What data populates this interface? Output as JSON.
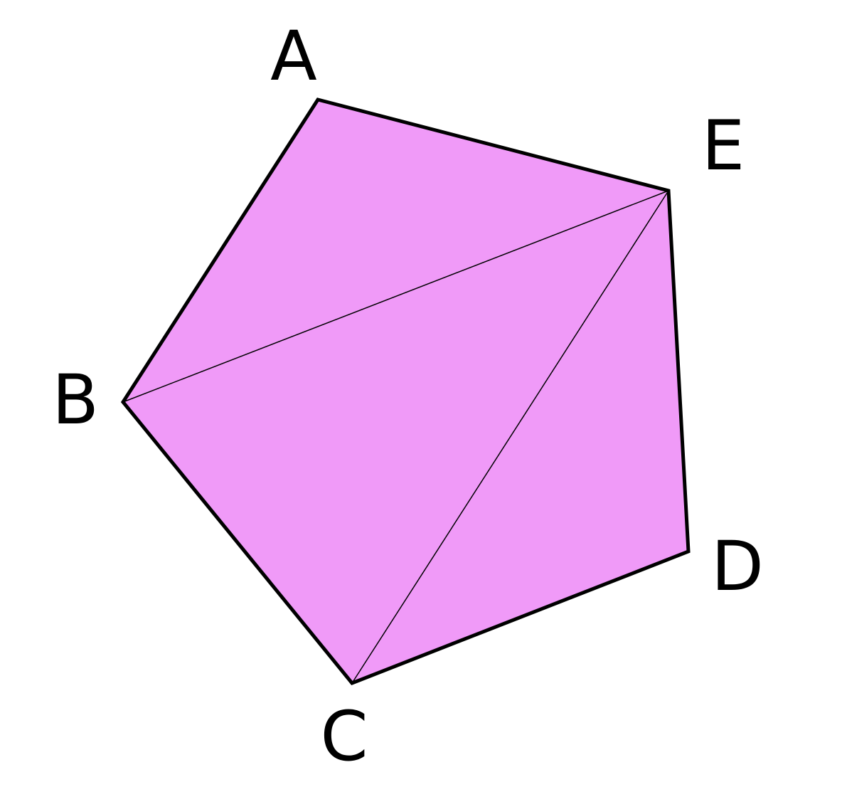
{
  "figure": {
    "type": "pentagon-triangulation",
    "colors": {
      "fill": "#f09af8",
      "outline": "#000000",
      "diagonal": "#000000",
      "background": "#ffffff"
    },
    "vertices": {
      "A": "A",
      "B": "B",
      "C": "C",
      "D": "D",
      "E": "E"
    },
    "polygon_order": [
      "A",
      "E",
      "D",
      "C",
      "B"
    ],
    "diagonals": [
      [
        "B",
        "E"
      ],
      [
        "C",
        "E"
      ]
    ]
  }
}
